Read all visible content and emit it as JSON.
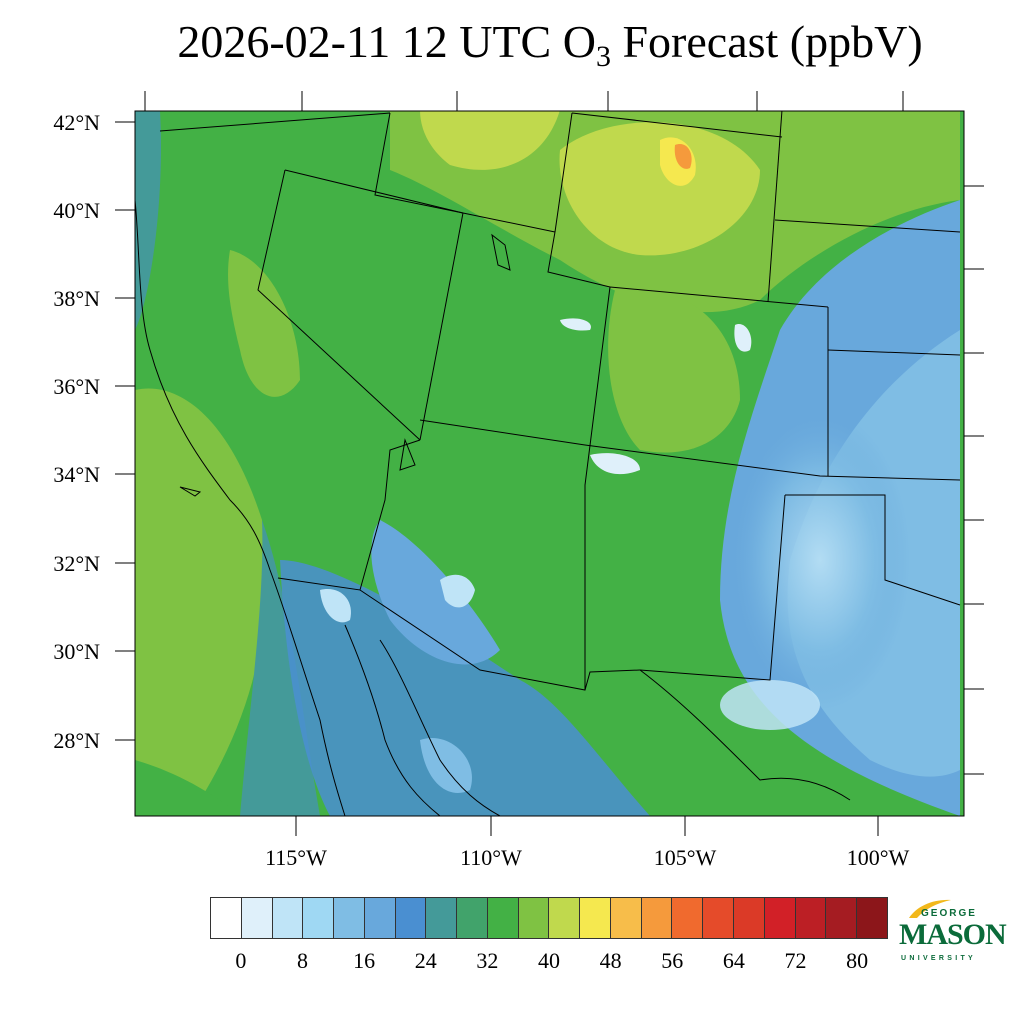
{
  "title": {
    "prefix": "2026-02-11 12 UTC O",
    "subscript": "3",
    "suffix": " Forecast (ppbV)"
  },
  "map": {
    "lat_labels": [
      "42°N",
      "40°N",
      "38°N",
      "36°N",
      "34°N",
      "32°N",
      "30°N",
      "28°N"
    ],
    "lon_labels": [
      "115°W",
      "110°W",
      "105°W",
      "100°W"
    ]
  },
  "colorbar": {
    "labels": [
      "0",
      "8",
      "16",
      "24",
      "32",
      "40",
      "48",
      "56",
      "64",
      "72",
      "80"
    ],
    "colors": [
      "#ffffff",
      "#dff0fa",
      "#bfe4f7",
      "#9fd8f3",
      "#7fbde4",
      "#68a8dc",
      "#4a8fd1",
      "#449a99",
      "#41a36b",
      "#43b145",
      "#7fc243",
      "#c0d94d",
      "#f5e84f",
      "#f7bd4a",
      "#f59a3c",
      "#f06a2e",
      "#e54b2a",
      "#db3a27",
      "#d22027",
      "#bc1f25",
      "#a51c22",
      "#8c161a"
    ]
  },
  "logo": {
    "george": "GEORGE",
    "mason": "MASON",
    "university": "UNIVERSITY"
  }
}
